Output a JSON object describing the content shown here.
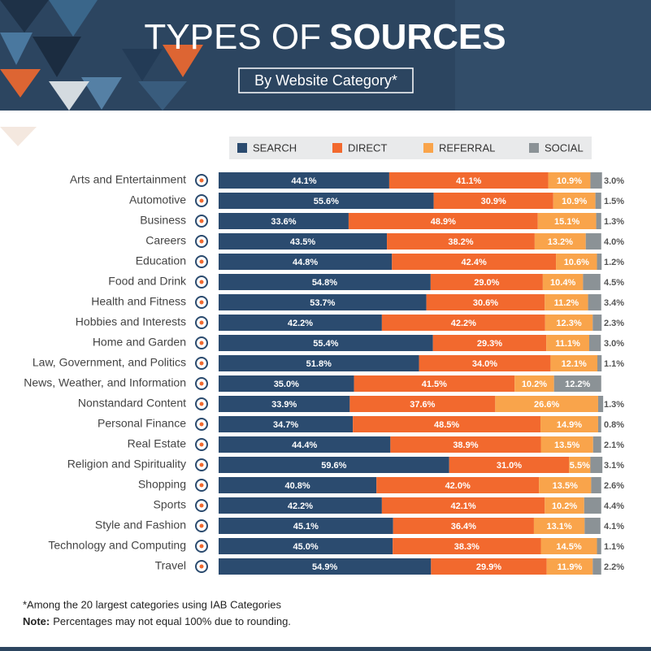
{
  "chart_data": {
    "type": "stacked-bar-horizontal",
    "title_light": "TYPES OF",
    "title_bold": "SOURCES",
    "subtitle": "By Website Category*",
    "categories": [
      "Arts and Entertainment",
      "Automotive",
      "Business",
      "Careers",
      "Education",
      "Food and Drink",
      "Health and Fitness",
      "Hobbies and Interests",
      "Home and Garden",
      "Law, Government, and Politics",
      "News, Weather, and Information",
      "Nonstandard Content",
      "Personal Finance",
      "Real Estate",
      "Religion and Spirituality",
      "Shopping",
      "Sports",
      "Style and Fashion",
      "Technology and Computing",
      "Travel"
    ],
    "xlim": [
      0,
      100
    ],
    "series": [
      {
        "name": "SEARCH",
        "color": "#2b4b6f",
        "values": [
          44.1,
          55.6,
          33.6,
          43.5,
          44.8,
          54.8,
          53.7,
          42.2,
          55.4,
          51.8,
          35.0,
          33.9,
          34.7,
          44.4,
          59.6,
          40.8,
          42.2,
          45.1,
          45.0,
          54.9
        ],
        "value_labels": [
          "44.1%",
          "55.6%",
          "33.6%",
          "43.5%",
          "44.8%",
          "54.8%",
          "53.7%",
          "42.2%",
          "55.4%",
          "51.8%",
          "35.0%",
          "33.9%",
          "34.7%",
          "44.4%",
          "59.6%",
          "40.8%",
          "42.2%",
          "45.1%",
          "45.0%",
          "54.9%"
        ]
      },
      {
        "name": "DIRECT",
        "color": "#f2692e",
        "values": [
          41.1,
          30.9,
          48.9,
          38.2,
          42.4,
          29.0,
          30.6,
          42.2,
          29.3,
          34.0,
          41.5,
          37.6,
          48.5,
          38.9,
          31.0,
          42.0,
          42.1,
          36.4,
          38.3,
          29.9
        ],
        "value_labels": [
          "41.1%",
          "30.9%",
          "48.9%",
          "38.2%",
          "42.4%",
          "29.0%",
          "30.6%",
          "42.2%",
          "29.3%",
          "34.0%",
          "41.5%",
          "37.6%",
          "48.5%",
          "38.9%",
          "31.0%",
          "42.0%",
          "42.1%",
          "36.4%",
          "38.3%",
          "29.9%"
        ]
      },
      {
        "name": "REFERRAL",
        "color": "#f9a44b",
        "values": [
          10.9,
          10.9,
          15.1,
          13.2,
          10.6,
          10.4,
          11.2,
          12.3,
          11.1,
          12.1,
          10.2,
          26.6,
          14.9,
          13.5,
          5.5,
          13.5,
          10.2,
          13.1,
          14.5,
          11.9
        ],
        "value_labels": [
          "10.9%",
          "10.9%",
          "15.1%",
          "13.2%",
          "10.6%",
          "10.4%",
          "11.2%",
          "12.3%",
          "11.1%",
          "12.1%",
          "10.2%",
          "26.6%",
          "14.9%",
          "13.5%",
          "5.5%",
          "13.5%",
          "10.2%",
          "13.1%",
          "14.5%",
          "11.9%"
        ]
      },
      {
        "name": "SOCIAL",
        "color": "#8b9296",
        "values": [
          3.0,
          1.5,
          1.3,
          4.0,
          1.2,
          4.5,
          3.4,
          2.3,
          3.0,
          1.1,
          12.2,
          1.3,
          0.8,
          2.1,
          3.1,
          2.6,
          4.4,
          4.1,
          1.1,
          2.2
        ],
        "value_labels": [
          "3.0%",
          "1.5%",
          "1.3%",
          "4.0%",
          "1.2%",
          "4.5%",
          "3.4%",
          "2.3%",
          "3.0%",
          "1.1%",
          "12.2%",
          "1.3%",
          "0.8%",
          "2.1%",
          "3.1%",
          "2.6%",
          "4.4%",
          "4.1%",
          "1.1%",
          "2.2%"
        ]
      }
    ],
    "footnote": "*Among the 20 largest categories using IAB Categories",
    "note_label": "Note:",
    "note_text": "Percentages may not equal 100% due to rounding."
  }
}
